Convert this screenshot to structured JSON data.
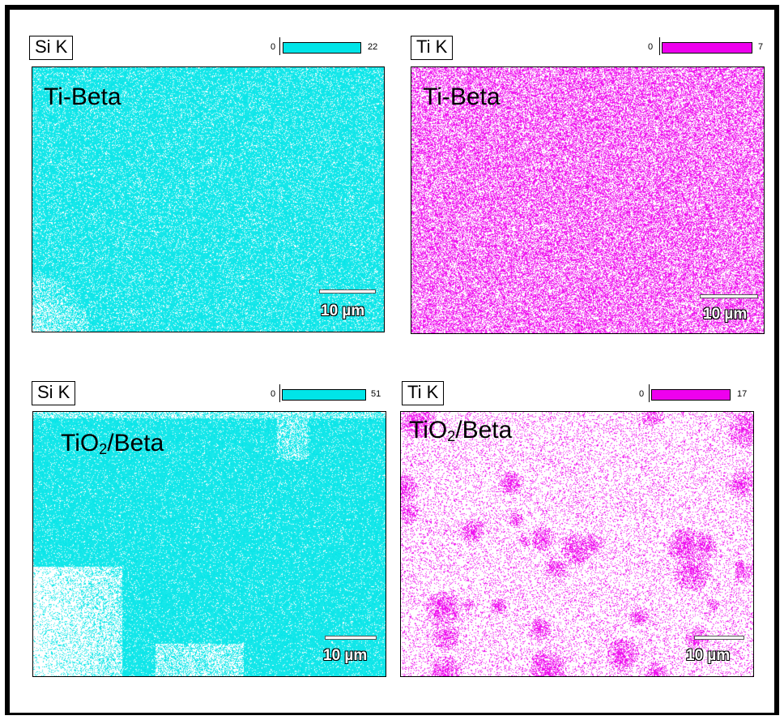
{
  "colors": {
    "si": "#00e5e8",
    "ti": "#ee00ee",
    "frame": "#000000"
  },
  "panels": [
    {
      "element": "Si K",
      "scale_min": "0",
      "scale_max": "22",
      "sample": {
        "base": "Ti-Beta",
        "sub": "",
        "tail": ""
      },
      "scale_bar": "10 µm",
      "color_key": "si",
      "coverage": "dense-uniform"
    },
    {
      "element": "Ti K",
      "scale_min": "0",
      "scale_max": "7",
      "sample": {
        "base": "Ti-Beta",
        "sub": "",
        "tail": ""
      },
      "scale_bar": "10 µm",
      "color_key": "ti",
      "coverage": "speckled-uniform"
    },
    {
      "element": "Si K",
      "scale_min": "0",
      "scale_max": "51",
      "sample": {
        "base": "TiO",
        "sub": "2",
        "tail": "/Beta"
      },
      "scale_bar": "10 µm",
      "color_key": "si",
      "coverage": "particle-with-voids"
    },
    {
      "element": "Ti K",
      "scale_min": "0",
      "scale_max": "17",
      "sample": {
        "base": "TiO",
        "sub": "2",
        "tail": "/Beta"
      },
      "scale_bar": "10 µm",
      "color_key": "ti",
      "coverage": "sparse-with-clusters"
    }
  ]
}
